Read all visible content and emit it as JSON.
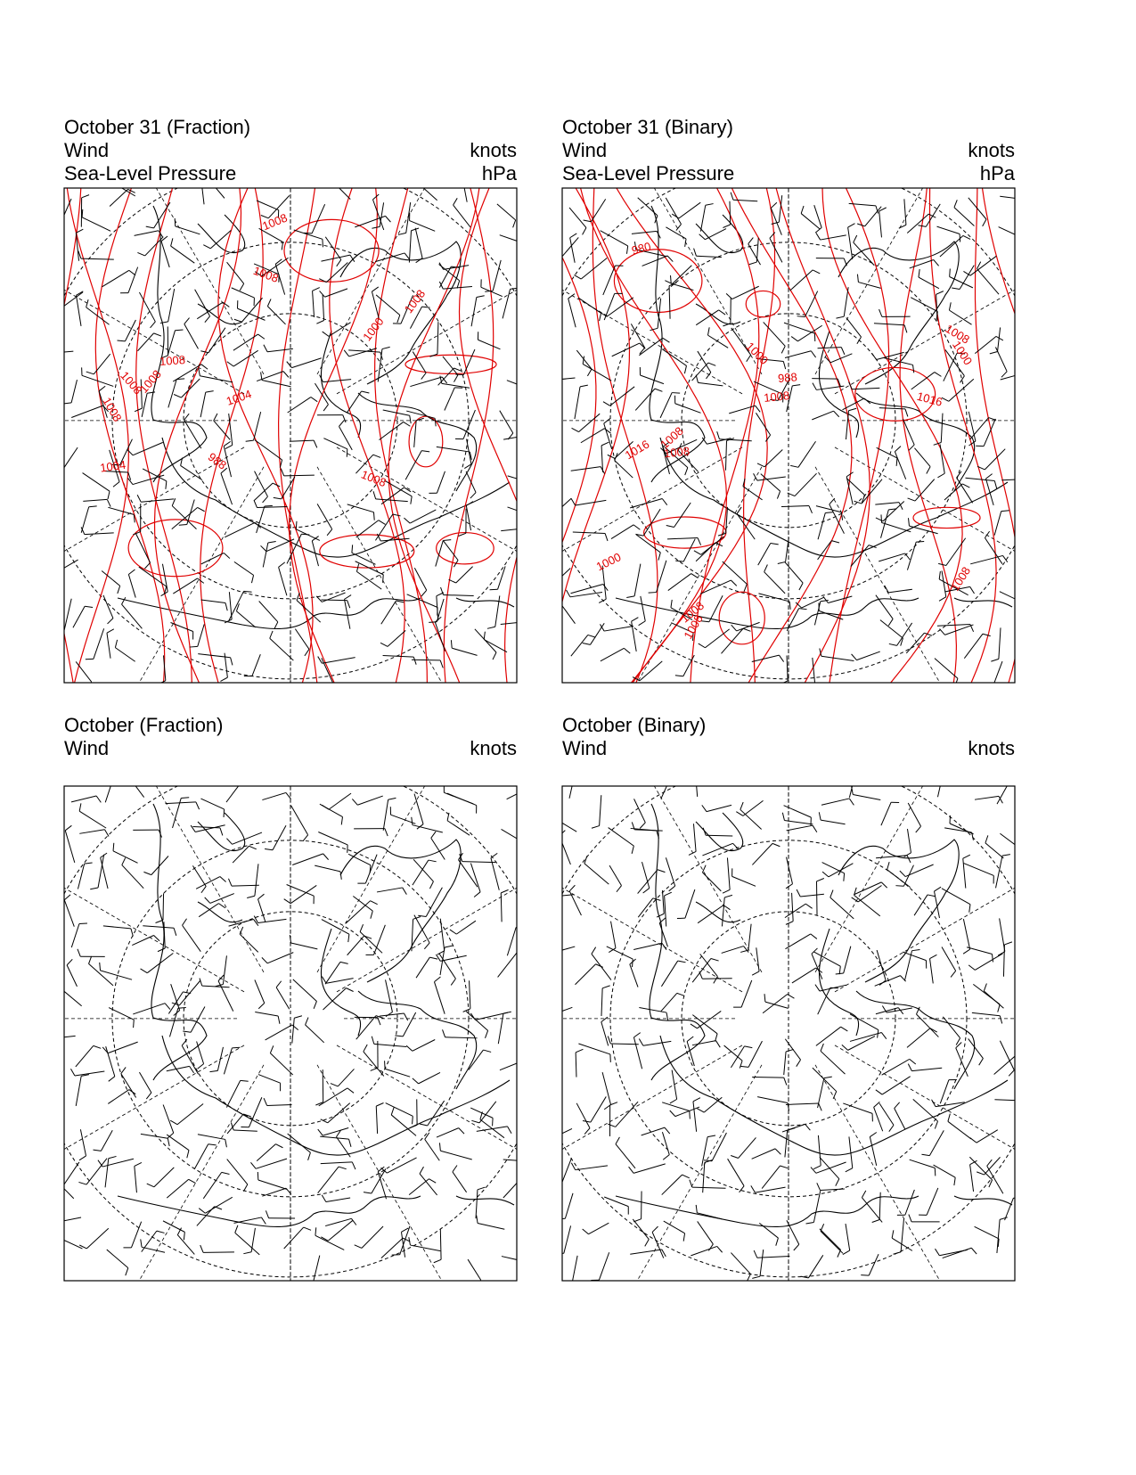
{
  "panels": [
    {
      "title": "October 31 (Fraction)",
      "fields": [
        {
          "name": "Wind",
          "unit": "knots"
        },
        {
          "name": "Sea-Level Pressure",
          "unit": "hPa"
        }
      ],
      "contour_labels": [
        "1004",
        "1008",
        "1008",
        "1004",
        "1008",
        "1008",
        "1008",
        "1000",
        "1008",
        "1008",
        "1008",
        "988"
      ]
    },
    {
      "title": "October 31 (Binary)",
      "fields": [
        {
          "name": "Wind",
          "unit": "knots"
        },
        {
          "name": "Sea-Level Pressure",
          "unit": "hPa"
        }
      ],
      "contour_labels": [
        "1000",
        "1016",
        "1008",
        "1008",
        "1008",
        "1008",
        "1008",
        "1000",
        "1016",
        "1000",
        "988",
        "980",
        "1008",
        "1008"
      ]
    },
    {
      "title": "October (Fraction)",
      "fields": [
        {
          "name": "Wind",
          "unit": "knots"
        }
      ],
      "contour_labels": []
    },
    {
      "title": "October (Binary)",
      "fields": [
        {
          "name": "Wind",
          "unit": "knots"
        }
      ],
      "contour_labels": []
    }
  ]
}
